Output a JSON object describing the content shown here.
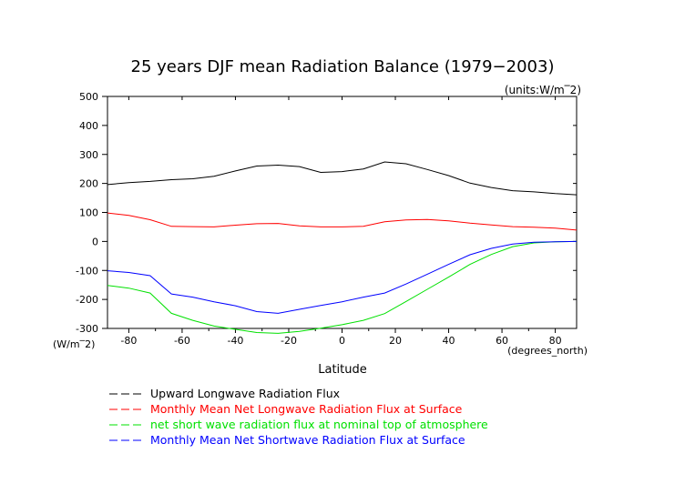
{
  "chart_data": {
    "type": "line",
    "title": "25 years DJF mean Radiation Balance (1979−2003)",
    "units_note": "(units:W/m‾2)",
    "xlabel": "Latitude",
    "x_unit": "(degrees_north)",
    "y_unit": "(W/m‾2)",
    "xlim": [
      -88,
      88
    ],
    "ylim": [
      -300,
      500
    ],
    "x_ticks": [
      -80,
      -60,
      -40,
      -20,
      0,
      20,
      40,
      60,
      80
    ],
    "y_ticks": [
      -300,
      -200,
      -100,
      0,
      100,
      200,
      300,
      400,
      500
    ],
    "grid": false,
    "legend_position": "bottom",
    "x": [
      -88,
      -80,
      -72,
      -64,
      -56,
      -48,
      -40,
      -32,
      -24,
      -16,
      -8,
      0,
      8,
      16,
      24,
      32,
      40,
      48,
      56,
      64,
      72,
      80,
      88
    ],
    "series": [
      {
        "name": "Upward Longwave Radiation Flux",
        "color": "#000000",
        "values": [
          196,
          203,
          207,
          213,
          216,
          225,
          243,
          260,
          263,
          258,
          238,
          241,
          250,
          274,
          268,
          248,
          227,
          201,
          186,
          175,
          171,
          165,
          161
        ]
      },
      {
        "name": "Monthly Mean Net Longwave Radiation Flux at Surface",
        "color": "#ff0000",
        "values": [
          98,
          90,
          75,
          52,
          51,
          50,
          56,
          61,
          62,
          54,
          50,
          50,
          52,
          68,
          74,
          76,
          71,
          63,
          57,
          51,
          49,
          46,
          39
        ]
      },
      {
        "name": "net short wave radiation flux at nominal top of atmosphere",
        "color": "#00e000",
        "values": [
          -152,
          -161,
          -178,
          -248,
          -272,
          -292,
          -303,
          -314,
          -317,
          -310,
          -299,
          -287,
          -272,
          -249,
          -207,
          -165,
          -123,
          -79,
          -45,
          -18,
          -5,
          -1,
          0
        ]
      },
      {
        "name": "Monthly Mean Net Shortwave Radiation Flux at Surface",
        "color": "#0000ff",
        "values": [
          -101,
          -107,
          -118,
          -181,
          -192,
          -208,
          -222,
          -242,
          -248,
          -234,
          -221,
          -208,
          -192,
          -178,
          -147,
          -113,
          -79,
          -46,
          -24,
          -9,
          -3,
          -1,
          0
        ]
      }
    ]
  }
}
